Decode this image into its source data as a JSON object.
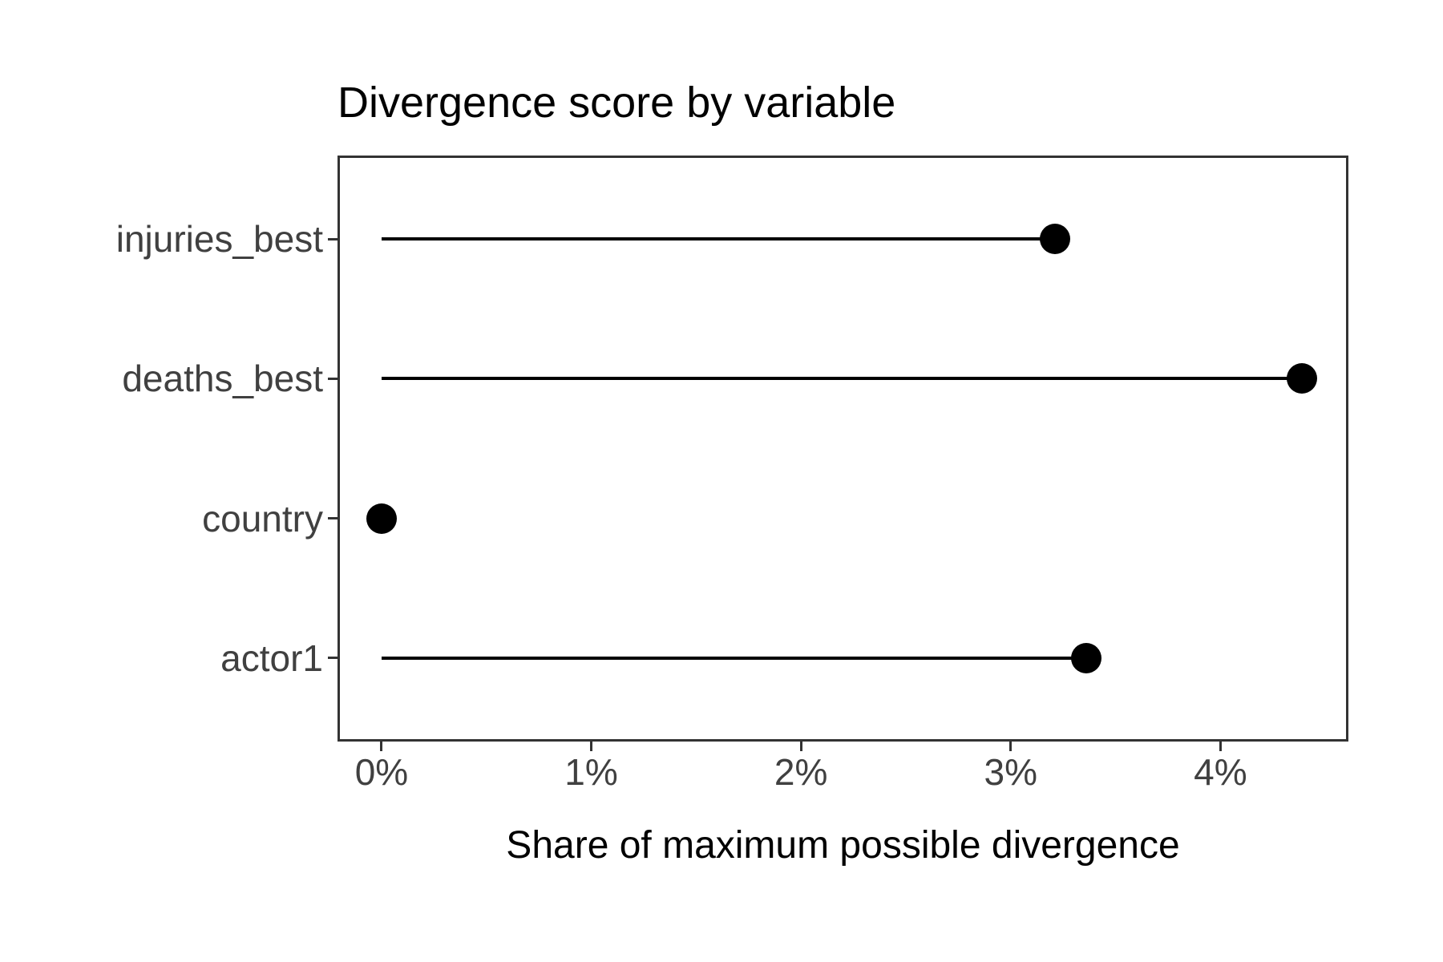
{
  "chart_data": {
    "type": "bar",
    "variant": "horizontal-lollipop",
    "title": "Divergence score by variable",
    "xlabel": "Share of maximum possible divergence",
    "ylabel": "",
    "categories": [
      "injuries_best",
      "deaths_best",
      "country",
      "actor1"
    ],
    "series": [
      {
        "name": "divergence_share_pct",
        "values": [
          3.21,
          4.39,
          0.0,
          3.36
        ]
      }
    ],
    "x_ticks": [
      {
        "value": 0,
        "label": "0%"
      },
      {
        "value": 1,
        "label": "1%"
      },
      {
        "value": 2,
        "label": "2%"
      },
      {
        "value": 3,
        "label": "3%"
      },
      {
        "value": 4,
        "label": "4%"
      }
    ],
    "xlim_pct": [
      -0.21,
      4.61
    ],
    "grid": "off",
    "legend": "none",
    "orientation": "horizontal",
    "colors": {
      "point": "#000000",
      "stem": "#000000",
      "panel_border": "#333333",
      "axis_text": "#404040",
      "axis_ticks": "#333333",
      "title_text": "#000000",
      "background": "#ffffff"
    }
  }
}
